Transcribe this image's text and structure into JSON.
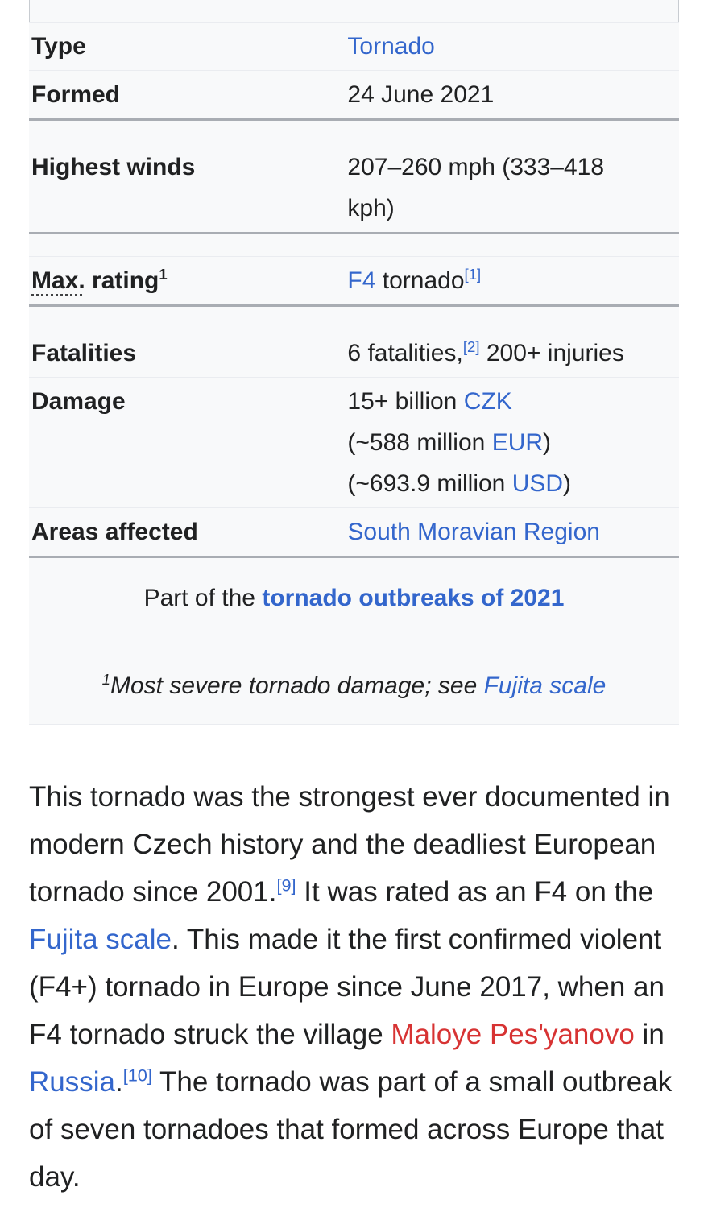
{
  "colors": {
    "text": "#202122",
    "link": "#3366cc",
    "red_link": "#d73333",
    "infobox_background": "#f8f9fa",
    "border_thin": "#eaecf0",
    "border_thick": "#a9adb3"
  },
  "infobox": {
    "rows": [
      {
        "type": "spacer",
        "side_borders": true
      },
      {
        "type": "separator",
        "style": "thin"
      },
      {
        "type": "data",
        "id": "type",
        "label": [
          {
            "t": "Type",
            "k": "text"
          }
        ],
        "value_lines": [
          [
            {
              "t": "Tornado",
              "k": "link",
              "n": "tornado-link"
            }
          ]
        ]
      },
      {
        "type": "separator",
        "style": "thin"
      },
      {
        "type": "data",
        "id": "formed",
        "label": [
          {
            "t": "Formed",
            "k": "text"
          }
        ],
        "value_lines": [
          [
            {
              "t": "24 June 2021",
              "k": "text"
            }
          ]
        ]
      },
      {
        "type": "separator",
        "style": "thick"
      },
      {
        "type": "spacer"
      },
      {
        "type": "separator",
        "style": "thin"
      },
      {
        "type": "data",
        "id": "highest-winds",
        "label": [
          {
            "t": "Highest winds",
            "k": "text"
          }
        ],
        "value_lines": [
          [
            {
              "t": "207–260 mph (333–418",
              "k": "text"
            }
          ],
          [
            {
              "t": "kph)",
              "k": "text"
            }
          ]
        ]
      },
      {
        "type": "separator",
        "style": "thick"
      },
      {
        "type": "spacer"
      },
      {
        "type": "separator",
        "style": "thin"
      },
      {
        "type": "data",
        "id": "max-rating",
        "label": [
          {
            "t": "Max.",
            "k": "abbr"
          },
          {
            "t": " rating",
            "k": "text"
          },
          {
            "t": "1",
            "k": "sup"
          }
        ],
        "value_lines": [
          [
            {
              "t": "F4",
              "k": "link",
              "n": "f4-link"
            },
            {
              "t": " tornado",
              "k": "text"
            },
            {
              "t": "[1]",
              "k": "suplink",
              "n": "ref-1-link"
            }
          ]
        ]
      },
      {
        "type": "separator",
        "style": "thick"
      },
      {
        "type": "spacer"
      },
      {
        "type": "separator",
        "style": "thin"
      },
      {
        "type": "data",
        "id": "fatalities",
        "label": [
          {
            "t": "Fatalities",
            "k": "text"
          }
        ],
        "value_lines": [
          [
            {
              "t": "6 fatalities,",
              "k": "text"
            },
            {
              "t": "[2]",
              "k": "suplink",
              "n": "ref-2-link"
            },
            {
              "t": " 200+ injuries",
              "k": "text"
            }
          ]
        ]
      },
      {
        "type": "separator",
        "style": "thin"
      },
      {
        "type": "data",
        "id": "damage",
        "label": [
          {
            "t": "Damage",
            "k": "text"
          }
        ],
        "value_lines": [
          [
            {
              "t": "15+ billion ",
              "k": "text"
            },
            {
              "t": "CZK",
              "k": "link",
              "n": "czk-link"
            }
          ],
          [
            {
              "t": "(~588 million ",
              "k": "text"
            },
            {
              "t": "EUR",
              "k": "link",
              "n": "eur-link"
            },
            {
              "t": ")",
              "k": "text"
            }
          ],
          [
            {
              "t": "(~693.9 million ",
              "k": "text"
            },
            {
              "t": "USD",
              "k": "link",
              "n": "usd-link"
            },
            {
              "t": ")",
              "k": "text"
            }
          ]
        ]
      },
      {
        "type": "separator",
        "style": "thin"
      },
      {
        "type": "data",
        "id": "areas-affected",
        "label": [
          {
            "t": "Areas affected",
            "k": "text"
          }
        ],
        "value_lines": [
          [
            {
              "t": "South Moravian Region",
              "k": "link",
              "n": "south-moravian-region-link"
            }
          ]
        ]
      },
      {
        "type": "separator",
        "style": "thick"
      },
      {
        "type": "below",
        "id": "part-of",
        "segments": [
          {
            "t": "Part of the ",
            "k": "text"
          },
          {
            "t": "tornado outbreaks of 2021",
            "k": "boldlink",
            "n": "tornado-outbreaks-of-2021-link"
          }
        ]
      },
      {
        "type": "below",
        "id": "footnote",
        "segments": [
          {
            "t": "1",
            "k": "sup"
          },
          {
            "t": "Most severe tornado damage; see ",
            "k": "text"
          },
          {
            "t": "Fujita scale",
            "k": "link",
            "n": "fujita-scale-footnote-link"
          }
        ]
      },
      {
        "type": "separator",
        "style": "thin"
      }
    ]
  },
  "article": {
    "paragraph_segments": [
      {
        "t": "This tornado was the strongest ever documented in modern Czech history and the deadliest European tornado since 2001.",
        "k": "text"
      },
      {
        "t": "[9]",
        "k": "suplink",
        "n": "ref-9-link"
      },
      {
        "t": " It was rated as an F4 on the ",
        "k": "text"
      },
      {
        "t": "Fujita scale",
        "k": "link",
        "n": "fujita-scale-body-link"
      },
      {
        "t": ". This made it the first confirmed violent (F4+) tornado in Europe since June 2017, when an F4 tornado struck the village ",
        "k": "text"
      },
      {
        "t": "Maloye Pes'yanovo",
        "k": "redlink",
        "n": "maloye-pesyanovo-link"
      },
      {
        "t": " in ",
        "k": "text"
      },
      {
        "t": "Russia",
        "k": "link",
        "n": "russia-link"
      },
      {
        "t": ".",
        "k": "text"
      },
      {
        "t": "[10]",
        "k": "suplink",
        "n": "ref-10-link"
      },
      {
        "t": " The tornado was part of a small outbreak of seven tornadoes that formed across Europe that day.",
        "k": "text"
      }
    ]
  }
}
